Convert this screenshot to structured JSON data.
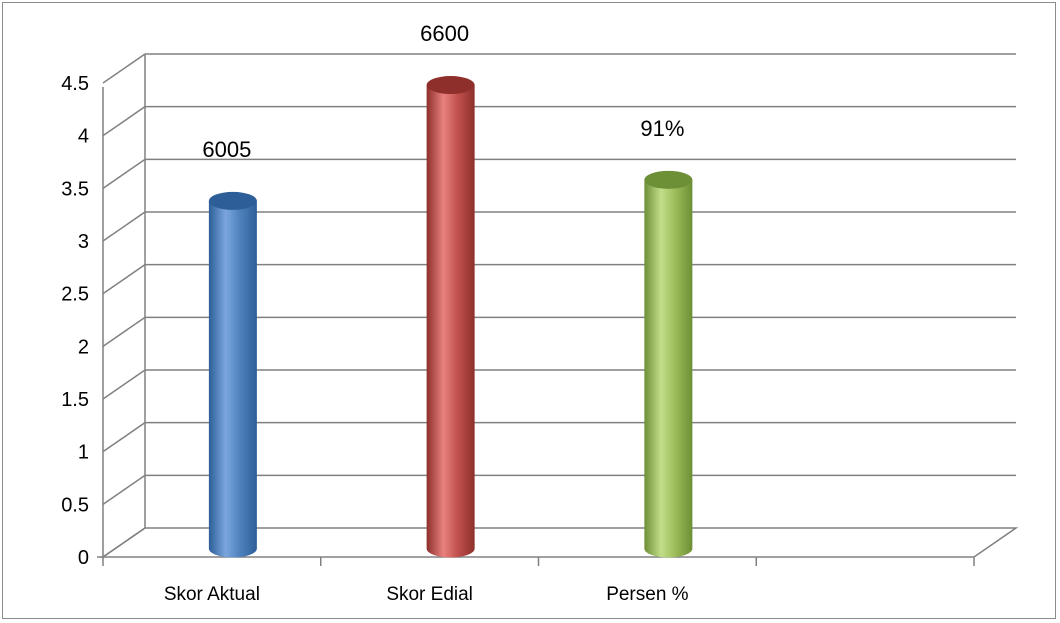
{
  "chart_data": {
    "type": "bar",
    "categories": [
      "Skor Aktual",
      "Skor Edial",
      "Persen %"
    ],
    "values": [
      3.3,
      4.4,
      3.5
    ],
    "data_labels": [
      "6005",
      "6600",
      "91%"
    ],
    "ylim": [
      0,
      4.5
    ],
    "yticks": [
      "0",
      "0.5",
      "1",
      "1.5",
      "2",
      "2.5",
      "3",
      "3.5",
      "4",
      "4.5"
    ],
    "grid": true,
    "three_d": true,
    "colors": [
      "#4f81bd",
      "#c0504d",
      "#9bbb59"
    ],
    "colors_light": [
      "#7aa6dd",
      "#e8817e",
      "#c3de8a"
    ],
    "colors_dark": [
      "#2e5e97",
      "#8e2f2c",
      "#6d8f35"
    ],
    "grid_color": "#808080"
  }
}
